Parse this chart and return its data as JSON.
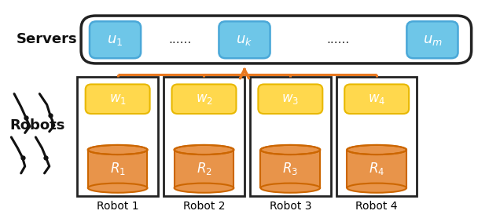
{
  "fig_width": 6.22,
  "fig_height": 2.78,
  "dpi": 100,
  "bg_color": "#ffffff",
  "server_box_color": "#6EC6E8",
  "server_box_edge": "#4aa8d8",
  "server_big_box_edge": "#222222",
  "server_big_box_fill": "#ffffff",
  "w_box_color": "#FFD84D",
  "w_box_edge": "#E8B800",
  "r_cylinder_color": "#E8944A",
  "r_cylinder_edge": "#CC6600",
  "robot_box_edge": "#222222",
  "robot_box_fill": "#ffffff",
  "arrow_color": "#E87820",
  "servers_label": "Servers",
  "robots_label": "Robots",
  "server_labels": [
    "$u_1$",
    "$u_k$",
    "$u_m$"
  ],
  "w_labels": [
    "$w_1$",
    "$w_2$",
    "$w_3$",
    "$w_4$"
  ],
  "r_labels": [
    "$R_1$",
    "$R_2$",
    "$R_3$",
    "$R_4$"
  ],
  "robot_labels": [
    "Robot 1",
    "Robot 2",
    "Robot 3",
    "Robot 4"
  ],
  "dots": "......",
  "label_color": "#ffffff",
  "text_color": "#000000"
}
